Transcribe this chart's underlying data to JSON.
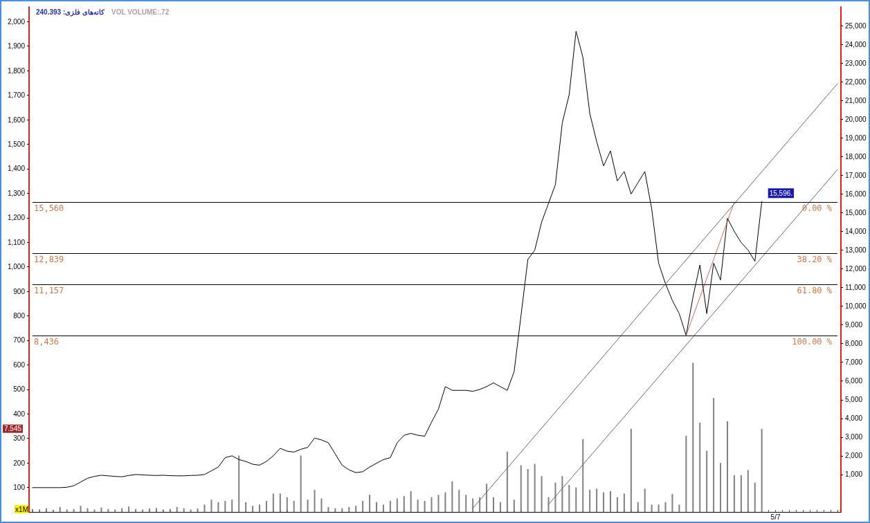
{
  "chart_data": {
    "type": "line",
    "title": "کانه‌های فلزی: 240.393",
    "subtitle": "VOL VOLUME:.72",
    "ylabel": "x1M",
    "categories": [
      null,
      null,
      null,
      null,
      null,
      null,
      null,
      null,
      null,
      null,
      null,
      null,
      null,
      null,
      null,
      null,
      null,
      null,
      null,
      null,
      null,
      null,
      null,
      null,
      null,
      null,
      null,
      null,
      null,
      null,
      null,
      null,
      null,
      null,
      null,
      null,
      null,
      null,
      null,
      null,
      null,
      null,
      null,
      null,
      null,
      null,
      null,
      null,
      null,
      null,
      null,
      null,
      null,
      null,
      null,
      null,
      null,
      null,
      null,
      null,
      null,
      null,
      null,
      null,
      null,
      null,
      null,
      null,
      null,
      null,
      null,
      null,
      null,
      null,
      null,
      null,
      null,
      null,
      null,
      null,
      null,
      null,
      null,
      null,
      null,
      null,
      null,
      null,
      null,
      null,
      null,
      null,
      null,
      null,
      null,
      null,
      null,
      null,
      null,
      null,
      null,
      null,
      null,
      null,
      null,
      null,
      null,
      null,
      "5/7",
      null,
      null,
      null,
      null,
      null,
      null,
      null,
      null,
      null
    ],
    "series": [
      {
        "type": "bar",
        "axis": "y",
        "color": "#808080",
        "values": [
          12,
          10,
          15,
          8,
          20,
          10,
          12,
          25,
          15,
          10,
          18,
          12,
          10,
          15,
          22,
          12,
          10,
          14,
          16,
          10,
          12,
          20,
          15,
          10,
          14,
          30,
          50,
          40,
          45,
          50,
          230,
          40,
          25,
          30,
          45,
          75,
          75,
          60,
          45,
          230,
          50,
          90,
          55,
          20,
          15,
          15,
          20,
          25,
          45,
          70,
          40,
          30,
          45,
          55,
          65,
          85,
          50,
          45,
          60,
          70,
          80,
          125,
          90,
          70,
          55,
          60,
          115,
          60,
          40,
          246,
          50,
          190,
          175,
          196,
          146,
          60,
          120,
          146,
          110,
          100,
          297,
          90,
          95,
          80,
          85,
          60,
          75,
          339,
          40,
          95,
          30,
          30,
          40,
          73,
          30,
          311,
          608,
          364,
          250,
          465,
          200,
          370,
          150,
          150,
          171,
          120,
          339,
          null,
          null,
          null,
          null,
          null,
          null,
          null,
          null,
          null,
          null,
          null
        ]
      },
      {
        "axis": "y2",
        "color": "#000000",
        "values": [
          300,
          300,
          300,
          300,
          300,
          320,
          400,
          600,
          800,
          900,
          960,
          930,
          900,
          880,
          950,
          1000,
          980,
          960,
          950,
          960,
          940,
          930,
          930,
          950,
          960,
          1000,
          1200,
          1400,
          1900,
          2000,
          1800,
          1700,
          1550,
          1500,
          1700,
          2000,
          2400,
          2250,
          2200,
          2350,
          2450,
          2950,
          2850,
          2700,
          2100,
          1500,
          1250,
          1100,
          1150,
          1400,
          1600,
          1800,
          1900,
          2700,
          3100,
          3200,
          3100,
          3050,
          3800,
          4500,
          5700,
          5500,
          5500,
          5500,
          5450,
          5550,
          5700,
          5900,
          5700,
          5500,
          6500,
          9500,
          12500,
          13000,
          14500,
          15500,
          16500,
          19800,
          21300,
          24700,
          23300,
          20300,
          18800,
          17500,
          18300,
          16700,
          17200,
          16000,
          16600,
          17200,
          15200,
          12300,
          11200,
          10300,
          9600,
          8436,
          10500,
          12200,
          9600,
          12300,
          11400,
          14700,
          14000,
          13400,
          13000,
          12400,
          15596,
          null,
          null,
          null,
          null,
          null,
          null,
          null,
          null,
          null,
          null,
          null
        ],
        "value_labels": [
          null,
          null,
          null,
          null,
          null,
          null,
          null,
          null,
          null,
          null,
          null,
          null,
          null,
          null,
          null,
          null,
          null,
          null,
          null,
          null,
          null,
          null,
          null,
          null,
          null,
          null,
          null,
          null,
          null,
          null,
          null,
          null,
          null,
          null,
          null,
          null,
          null,
          null,
          null,
          null,
          null,
          null,
          null,
          null,
          null,
          null,
          null,
          null,
          null,
          null,
          null,
          null,
          null,
          null,
          null,
          null,
          null,
          null,
          null,
          null,
          null,
          null,
          null,
          null,
          null,
          null,
          null,
          null,
          null,
          null,
          null,
          null,
          null,
          null,
          null,
          null,
          null,
          null,
          null,
          null,
          null,
          null,
          null,
          null,
          null,
          null,
          null,
          null,
          null,
          null,
          null,
          null,
          null,
          null,
          null,
          null,
          null,
          null,
          null,
          null,
          null,
          null,
          null,
          null,
          null,
          null,
          "15,596.",
          null,
          null,
          null,
          null,
          null,
          null,
          null,
          null,
          null,
          null,
          null
        ]
      },
      {
        "axis": "y2",
        "color": "#666666",
        "line_style": "solid",
        "values": [
          null,
          null,
          null,
          null,
          null,
          null,
          null,
          null,
          null,
          null,
          null,
          null,
          null,
          null,
          null,
          null,
          null,
          null,
          null,
          null,
          null,
          null,
          null,
          null,
          null,
          null,
          null,
          null,
          null,
          null,
          null,
          null,
          null,
          null,
          null,
          null,
          null,
          null,
          null,
          null,
          null,
          null,
          null,
          null,
          null,
          null,
          null,
          null,
          null,
          null,
          null,
          null,
          null,
          null,
          null,
          null,
          null,
          null,
          null,
          null,
          null,
          null,
          null,
          null,
          -800,
          null,
          null,
          null,
          null,
          null,
          null,
          null,
          null,
          null,
          null,
          null,
          null,
          null,
          null,
          null,
          null,
          null,
          null,
          null,
          null,
          null,
          null,
          null,
          null,
          null,
          null,
          null,
          null,
          null,
          null,
          null,
          null,
          null,
          null,
          null,
          null,
          null,
          null,
          null,
          null,
          null,
          null,
          null,
          null,
          null,
          null,
          null,
          null,
          null,
          null,
          null,
          null,
          21900
        ]
      },
      {
        "axis": "y2",
        "color": "#666666",
        "line_style": "solid",
        "values": [
          null,
          null,
          null,
          null,
          null,
          null,
          null,
          null,
          null,
          null,
          null,
          null,
          null,
          null,
          null,
          null,
          null,
          null,
          null,
          null,
          null,
          null,
          null,
          null,
          null,
          null,
          null,
          null,
          null,
          null,
          null,
          null,
          null,
          null,
          null,
          null,
          null,
          null,
          null,
          null,
          null,
          null,
          null,
          null,
          null,
          null,
          null,
          null,
          null,
          null,
          null,
          null,
          null,
          null,
          null,
          null,
          null,
          null,
          null,
          null,
          null,
          null,
          null,
          null,
          null,
          null,
          null,
          null,
          null,
          null,
          null,
          null,
          null,
          null,
          null,
          -600,
          null,
          null,
          null,
          null,
          null,
          null,
          null,
          null,
          null,
          null,
          null,
          null,
          null,
          null,
          null,
          null,
          null,
          null,
          null,
          null,
          null,
          null,
          null,
          null,
          null,
          null,
          null,
          null,
          null,
          null,
          null,
          null,
          null,
          null,
          null,
          null,
          null,
          null,
          null,
          null,
          null,
          17300
        ]
      },
      {
        "axis": "y2",
        "color": "#c0504d",
        "line_style": "dotted",
        "values": [
          null,
          null,
          null,
          null,
          null,
          null,
          null,
          null,
          null,
          null,
          null,
          null,
          null,
          null,
          null,
          null,
          null,
          null,
          null,
          null,
          null,
          null,
          null,
          null,
          null,
          null,
          null,
          null,
          null,
          null,
          null,
          null,
          null,
          null,
          null,
          null,
          null,
          null,
          null,
          null,
          null,
          null,
          null,
          null,
          null,
          null,
          null,
          null,
          null,
          null,
          null,
          null,
          null,
          null,
          null,
          null,
          null,
          null,
          null,
          null,
          null,
          null,
          null,
          null,
          null,
          null,
          null,
          null,
          null,
          null,
          null,
          null,
          null,
          null,
          null,
          null,
          null,
          null,
          null,
          null,
          null,
          null,
          null,
          null,
          null,
          null,
          null,
          null,
          null,
          null,
          null,
          null,
          null,
          null,
          null,
          8436,
          null,
          null,
          null,
          null,
          null,
          null,
          15560,
          null,
          null,
          null,
          null,
          null,
          null,
          null,
          null,
          null,
          null,
          null,
          null,
          null,
          null,
          null
        ]
      }
    ],
    "ylim": [
      0,
      2060
    ],
    "yticks": [
      100,
      200,
      300,
      400,
      500,
      600,
      700,
      800,
      900,
      {
        "value": 1000,
        "label": "1,000"
      },
      {
        "value": 1100,
        "label": "1,100"
      },
      {
        "value": 1200,
        "label": "1,200"
      },
      {
        "value": 1300,
        "label": "1,300"
      },
      {
        "value": 1400,
        "label": "1,400"
      },
      {
        "value": 1500,
        "label": "1,500"
      },
      {
        "value": 1600,
        "label": "1,600"
      },
      {
        "value": 1700,
        "label": "1,700"
      },
      {
        "value": 1800,
        "label": "1,800"
      },
      {
        "value": 1900,
        "label": "1,900"
      },
      {
        "value": 2000,
        "label": "2,000"
      }
    ],
    "y2lim": [
      -1000,
      26000
    ],
    "y2ticks": [
      {
        "value": 1000,
        "label": "1,000"
      },
      {
        "value": 2000,
        "label": "2,000"
      },
      {
        "value": 3000,
        "label": "3,000"
      },
      {
        "value": 4000,
        "label": "4,000"
      },
      {
        "value": 5000,
        "label": "5,000"
      },
      {
        "value": 6000,
        "label": "6,000"
      },
      {
        "value": 7000,
        "label": "7,000"
      },
      {
        "value": 8000,
        "label": "8,000"
      },
      {
        "value": 9000,
        "label": "9,000"
      },
      {
        "value": 10000,
        "label": "10,000"
      },
      {
        "value": 11000,
        "label": "11,000"
      },
      {
        "value": 12000,
        "label": "12,000"
      },
      {
        "value": 13000,
        "label": "13,000"
      },
      {
        "value": 14000,
        "label": "14,000"
      },
      {
        "value": 15000,
        "label": "15,000"
      },
      {
        "value": 16000,
        "label": "16,000"
      },
      {
        "value": 17000,
        "label": "17,000"
      },
      {
        "value": 18000,
        "label": "18,000"
      },
      {
        "value": 19000,
        "label": "19,000"
      },
      {
        "value": 20000,
        "label": "20,000"
      },
      {
        "value": 21000,
        "label": "21,000"
      },
      {
        "value": 22000,
        "label": "22,000"
      },
      {
        "value": 23000,
        "label": "23,000"
      },
      {
        "value": 24000,
        "label": "24,000"
      },
      {
        "value": 25000,
        "label": "25,000"
      }
    ],
    "ref_lines": [
      {
        "axis": "y2",
        "value": 15560,
        "label": "15,560",
        "color": "#000000"
      },
      {
        "axis": "y2",
        "value": 12839,
        "label": "12,839",
        "color": "#000000"
      },
      {
        "axis": "y2",
        "value": 11157,
        "label": "11,157",
        "color": "#000000"
      },
      {
        "axis": "y2",
        "value": 8436,
        "label": "8,436",
        "color": "#000000"
      }
    ],
    "annotations": [
      "0.00 %",
      "38.20 %",
      "61.80 %",
      "100.00 %",
      "7.545"
    ],
    "marker": "none",
    "grid": false
  }
}
